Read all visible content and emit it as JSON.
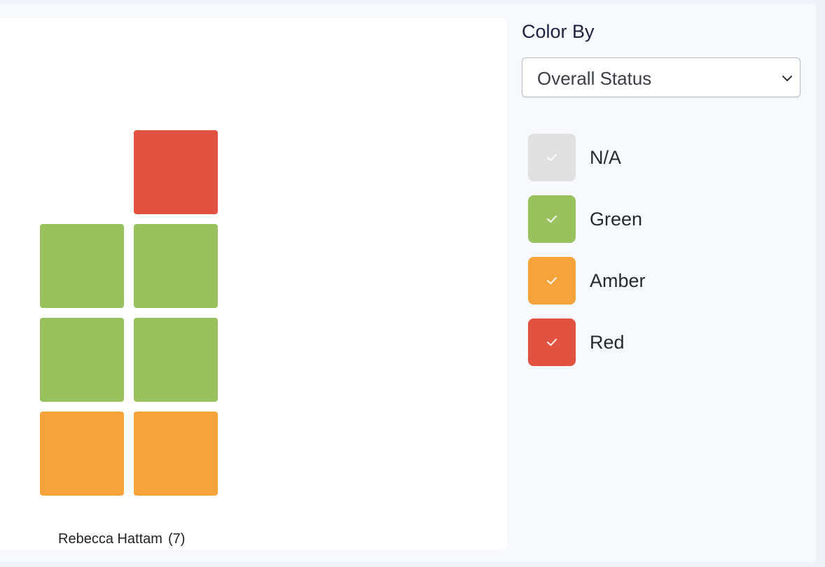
{
  "chart": {
    "group_name": "Rebecca Hattam",
    "group_count": "(7)",
    "tiles": [
      {
        "status": "red",
        "column": 2,
        "level": 4
      },
      {
        "status": "green",
        "column": 1,
        "level": 3
      },
      {
        "status": "green",
        "column": 2,
        "level": 3
      },
      {
        "status": "green",
        "column": 1,
        "level": 2
      },
      {
        "status": "green",
        "column": 2,
        "level": 2
      },
      {
        "status": "amber",
        "column": 1,
        "level": 1
      },
      {
        "status": "amber",
        "column": 2,
        "level": 1
      }
    ]
  },
  "sidebar": {
    "title": "Color By",
    "select_value": "Overall Status",
    "legend": [
      {
        "key": "na",
        "label": "N/A",
        "color": "#e0e0e0",
        "checked": true
      },
      {
        "key": "green",
        "label": "Green",
        "color": "#99c15d",
        "checked": true
      },
      {
        "key": "amber",
        "label": "Amber",
        "color": "#f5a33a",
        "checked": true
      },
      {
        "key": "red",
        "label": "Red",
        "color": "#e15240",
        "checked": true
      }
    ]
  },
  "colors": {
    "red": "#e15240",
    "green": "#99c15d",
    "amber": "#f5a33a",
    "na": "#e0e0e0"
  },
  "icons": {
    "select": "chevron-down-icon",
    "legend": "check-icon"
  }
}
